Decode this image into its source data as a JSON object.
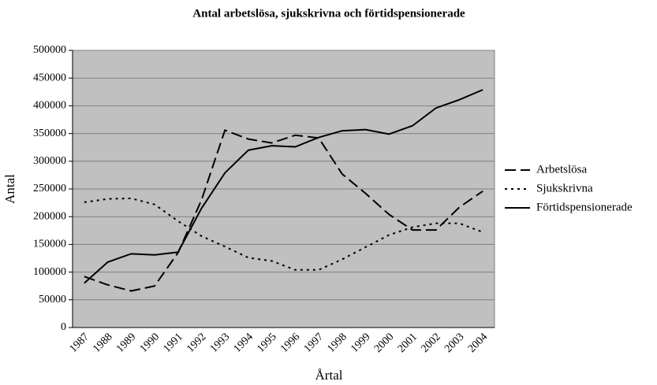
{
  "chart_data": {
    "type": "line",
    "title": "Antal arbetslösa, sjukskrivna och förtidspensionerade",
    "x_label": "Årtal",
    "y_label": "Antal",
    "categories": [
      "1987",
      "1988",
      "1989",
      "1990",
      "1991",
      "1992",
      "1993",
      "1994",
      "1995",
      "1996",
      "1997",
      "1998",
      "1999",
      "2000",
      "2001",
      "2002",
      "2003",
      "2004"
    ],
    "series": [
      {
        "name": "Arbetslösa",
        "color": "#000000",
        "dash": "dashed",
        "values": [
          92000,
          77000,
          66000,
          75000,
          135000,
          230000,
          356000,
          340000,
          333000,
          347000,
          342000,
          277000,
          242000,
          204000,
          176000,
          176000,
          217000,
          246000
        ]
      },
      {
        "name": "Sjukskrivna",
        "color": "#000000",
        "dash": "dotted",
        "values": [
          226000,
          232000,
          233000,
          222000,
          192000,
          165000,
          146000,
          126000,
          120000,
          104000,
          104000,
          123000,
          145000,
          167000,
          181000,
          188000,
          188000,
          172000
        ]
      },
      {
        "name": "Förtidspensionerade",
        "color": "#000000",
        "dash": "solid",
        "values": [
          80000,
          118000,
          133000,
          131000,
          136000,
          215000,
          279000,
          320000,
          328000,
          326000,
          343000,
          355000,
          357000,
          349000,
          364000,
          396000,
          411000,
          429000
        ]
      }
    ],
    "ylim": [
      0,
      500000
    ],
    "yticks": [
      0,
      50000,
      100000,
      150000,
      200000,
      250000,
      300000,
      350000,
      400000,
      450000,
      500000
    ],
    "grid": true,
    "legend": "right",
    "background": "#c0c0c0"
  }
}
